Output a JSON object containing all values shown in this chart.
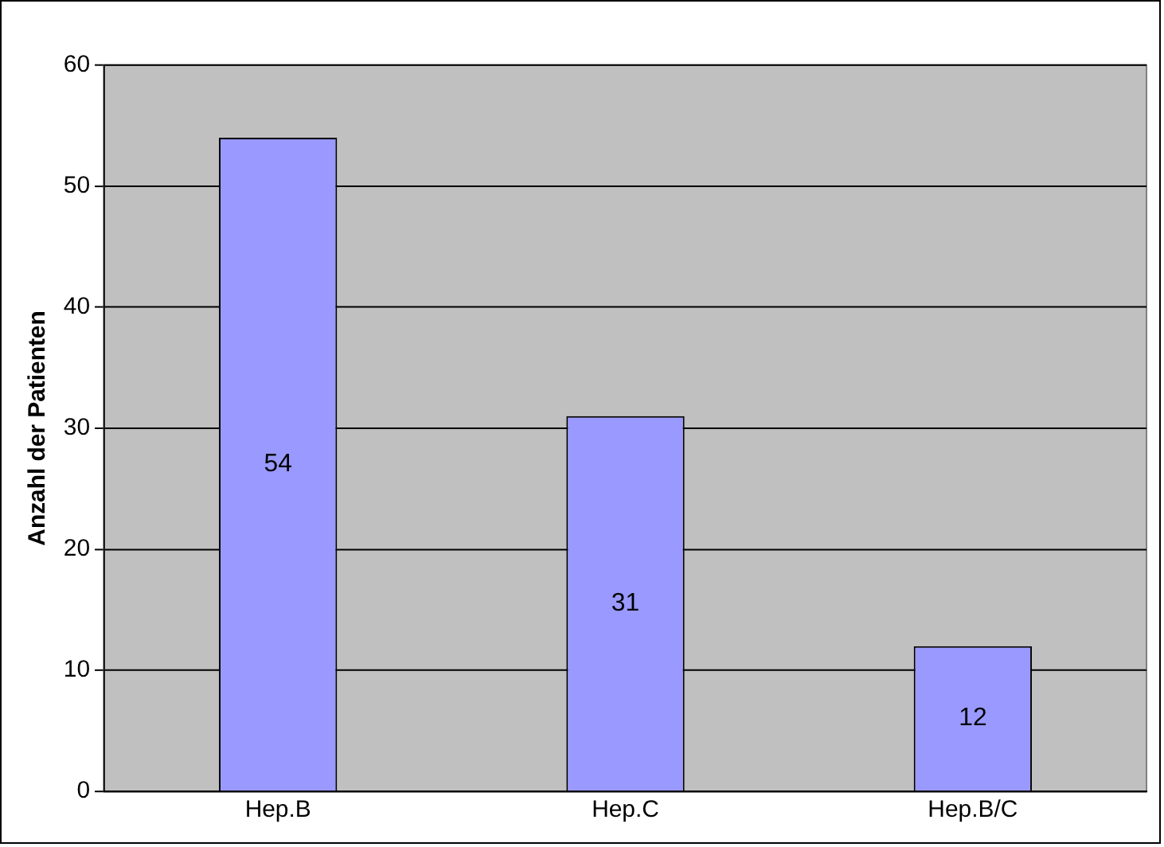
{
  "chart_data": {
    "type": "bar",
    "ylabel": "Anzahl der Patienten",
    "categories": [
      "Hep.B",
      "Hep.C",
      "Hep.B/C"
    ],
    "values": [
      54,
      31,
      12
    ],
    "color": "#9999ff",
    "ylim": [
      0,
      60
    ],
    "yticks": [
      0,
      10,
      20,
      30,
      40,
      50,
      60
    ],
    "grid": "y",
    "data_labels": true
  }
}
